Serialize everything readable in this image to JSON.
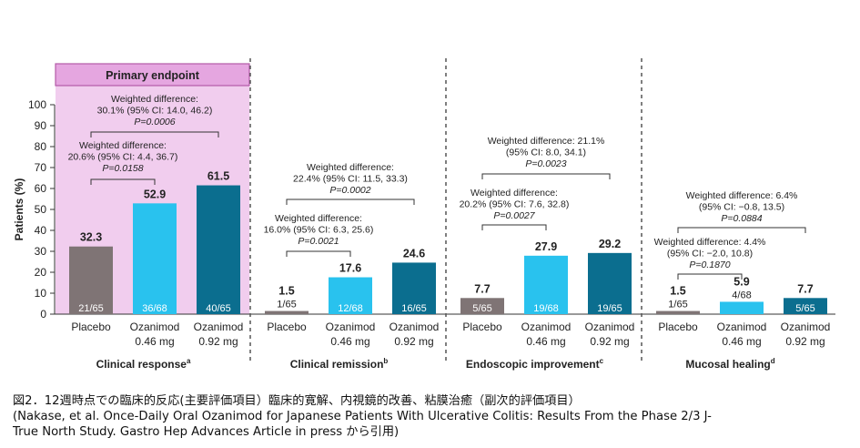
{
  "chart_data": {
    "type": "bar",
    "ylabel": "Patients (%)",
    "ylim": [
      0,
      100
    ],
    "yticks": [
      0,
      10,
      20,
      30,
      40,
      50,
      60,
      70,
      80,
      90,
      100
    ],
    "grid": false,
    "colors": {
      "placebo": "#7f7475",
      "oza046": "#29c2ee",
      "oza092": "#0b6e8f",
      "highlight": "#f1cdee",
      "highlight_border": "#b35aa8"
    },
    "category_labels": [
      {
        "line1": "Placebo",
        "line2": ""
      },
      {
        "line1": "Ozanimod",
        "line2": "0.46 mg"
      },
      {
        "line1": "Ozanimod",
        "line2": "0.92 mg"
      }
    ],
    "panels": [
      {
        "title": "Clinical response",
        "superscript": "a",
        "highlight_label": "Primary endpoint",
        "values": [
          32.3,
          52.9,
          61.5
        ],
        "value_labels": [
          "32.3",
          "52.9",
          "61.5"
        ],
        "n_labels": [
          "21/65",
          "36/68",
          "40/65"
        ],
        "annotations": [
          {
            "lines": [
              "Weighted difference:",
              "30.1% (95% CI: 14.0, 46.2)",
              "P=0.0006"
            ],
            "from": 0,
            "to": 2
          },
          {
            "lines": [
              "Weighted difference:",
              "20.6% (95% CI: 4.4, 36.7)",
              "P=0.0158"
            ],
            "from": 0,
            "to": 1
          }
        ]
      },
      {
        "title": "Clinical remission",
        "superscript": "b",
        "values": [
          1.5,
          17.6,
          24.6
        ],
        "value_labels": [
          "1.5",
          "17.6",
          "24.6"
        ],
        "n_labels": [
          "1/65",
          "12/68",
          "16/65"
        ],
        "annotations": [
          {
            "lines": [
              "Weighted difference:",
              "22.4% (95% CI: 11.5, 33.3)",
              "P=0.0002"
            ],
            "from": 0,
            "to": 2
          },
          {
            "lines": [
              "Weighted difference:",
              "16.0% (95% CI: 6.3, 25.6)",
              "P=0.0021"
            ],
            "from": 0,
            "to": 1
          }
        ]
      },
      {
        "title": "Endoscopic improvement",
        "superscript": "c",
        "values": [
          7.7,
          27.9,
          29.2
        ],
        "value_labels": [
          "7.7",
          "27.9",
          "29.2"
        ],
        "n_labels": [
          "5/65",
          "19/68",
          "19/65"
        ],
        "annotations": [
          {
            "lines": [
              "Weighted difference: 21.1%",
              "(95% CI: 8.0, 34.1)",
              "P=0.0023"
            ],
            "from": 0,
            "to": 2
          },
          {
            "lines": [
              "Weighted difference:",
              "20.2% (95% CI: 7.6, 32.8)",
              "P=0.0027"
            ],
            "from": 0,
            "to": 1
          }
        ]
      },
      {
        "title": "Mucosal healing",
        "superscript": "d",
        "values": [
          1.5,
          5.9,
          7.7
        ],
        "value_labels": [
          "1.5",
          "5.9",
          "7.7"
        ],
        "n_labels": [
          "1/65",
          "4/68",
          "5/65"
        ],
        "annotations": [
          {
            "lines": [
              "Weighted difference: 6.4%",
              "(95% CI: −0.8, 13.5)",
              "P=0.0884"
            ],
            "from": 0,
            "to": 2
          },
          {
            "lines": [
              "Weighted difference: 4.4%",
              "(95% CI: −2.0, 10.8)",
              "P=0.1870"
            ],
            "from": 0,
            "to": 1
          }
        ]
      }
    ]
  },
  "caption": {
    "line1": "図2．12週時点での臨床的反応(主要評価項目）臨床的寛解、内視鏡的改善、粘膜治癒（副次的評価項目）",
    "line2": "(Nakase, et al. Once-Daily Oral Ozanimod for Japanese Patients With Ulcerative Colitis: Results From  the Phase 2/3 J-",
    "line3": "True North Study. Gastro Hep Advances Article in press から引用)"
  }
}
